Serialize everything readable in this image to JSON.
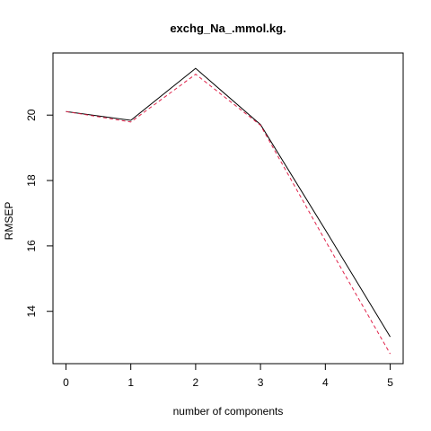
{
  "chart_data": {
    "type": "line",
    "title": "exchg_Na_.mmol.kg.",
    "xlabel": "number of components",
    "ylabel": "RMSEP",
    "x": [
      0,
      1,
      2,
      3,
      4,
      5
    ],
    "xlim": [
      -0.2,
      5.2
    ],
    "ylim": [
      12.4,
      21.9
    ],
    "xticks": [
      0,
      1,
      2,
      3,
      4,
      5
    ],
    "yticks": [
      14,
      16,
      18,
      20
    ],
    "grid": false,
    "series": [
      {
        "values": [
          20.11,
          19.84,
          21.43,
          19.71,
          16.49,
          13.22
        ],
        "color": "#000000",
        "dash": "solid"
      },
      {
        "values": [
          20.11,
          19.79,
          21.25,
          19.69,
          16.16,
          12.7
        ],
        "color": "#e0224a",
        "dash": "dashed"
      }
    ]
  }
}
